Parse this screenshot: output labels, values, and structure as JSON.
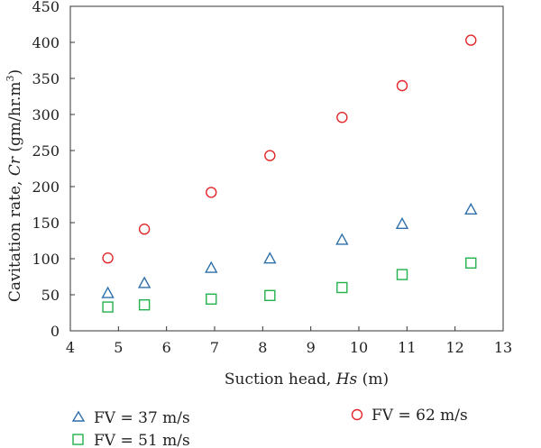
{
  "chart_data": {
    "type": "scatter",
    "xlabel_pre": "Suction head, ",
    "xlabel_var": "Hs",
    "xlabel_post": " (m)",
    "ylabel_pre": "Cavitation rate, ",
    "ylabel_var": "Cr",
    "ylabel_post": " (gm/hr.m",
    "ylabel_sup": "3",
    "ylabel_end": ")",
    "xlim": [
      4,
      13
    ],
    "ylim": [
      0,
      450
    ],
    "xticks": [
      4,
      5,
      6,
      7,
      8,
      9,
      10,
      11,
      12,
      13
    ],
    "yticks": [
      0,
      50,
      100,
      150,
      200,
      250,
      300,
      350,
      400,
      450
    ],
    "grid": false,
    "legend_position": "bottom",
    "series": [
      {
        "name": "FV = 37 m/s",
        "marker": "triangle",
        "color": "#2e6faa",
        "x": [
          4.78,
          5.54,
          6.93,
          8.15,
          9.65,
          10.9,
          12.33
        ],
        "y": [
          53,
          67,
          88,
          101,
          127,
          149,
          169
        ]
      },
      {
        "name": "FV = 51 m/s",
        "marker": "square",
        "color": "#22b14c",
        "x": [
          4.78,
          5.54,
          6.93,
          8.15,
          9.65,
          10.9,
          12.33
        ],
        "y": [
          33,
          36,
          44,
          49,
          60,
          78,
          94
        ]
      },
      {
        "name": "FV = 62 m/s",
        "marker": "circle",
        "color": "#e3262a",
        "x": [
          4.78,
          5.54,
          6.93,
          8.15,
          9.65,
          10.9,
          12.33
        ],
        "y": [
          101,
          141,
          192,
          243,
          296,
          340,
          403
        ]
      }
    ]
  }
}
